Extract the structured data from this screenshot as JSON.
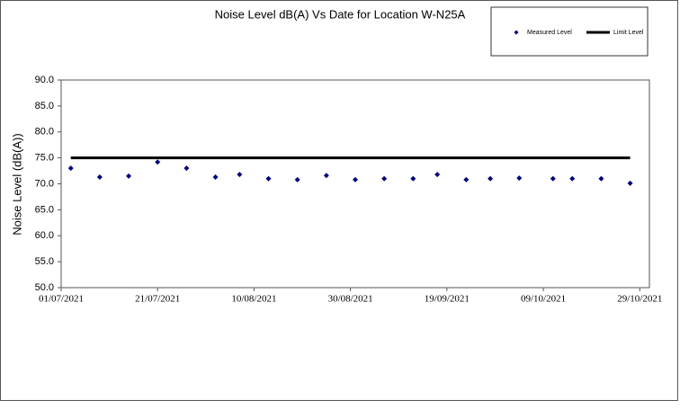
{
  "chart_data": {
    "type": "scatter",
    "title": "Noise Level dB(A) Vs Date for Location W-N25A",
    "y_label": "Noise Level (dB(A))",
    "series": [
      {
        "name": "Measured Level",
        "type": "scatter",
        "color": "#000080",
        "x": [
          "2021-07-03",
          "2021-07-09",
          "2021-07-15",
          "2021-07-21",
          "2021-07-27",
          "2021-08-02",
          "2021-08-07",
          "2021-08-13",
          "2021-08-19",
          "2021-08-25",
          "2021-08-31",
          "2021-09-06",
          "2021-09-12",
          "2021-09-17",
          "2021-09-23",
          "2021-09-28",
          "2021-10-04",
          "2021-10-11",
          "2021-10-15",
          "2021-10-21",
          "2021-10-27"
        ],
        "values": [
          73.0,
          71.3,
          71.5,
          74.2,
          73.0,
          71.3,
          71.8,
          71.0,
          70.8,
          71.6,
          70.8,
          71.0,
          71.0,
          71.8,
          70.8,
          71.0,
          71.1,
          71.0,
          71.0,
          71.0,
          70.1
        ]
      },
      {
        "name": "Limit Level",
        "type": "line",
        "color": "#000000",
        "x": [
          "2021-07-03",
          "2021-10-27"
        ],
        "values": [
          75,
          75
        ]
      }
    ],
    "xlim": [
      "2021-07-01",
      "2021-10-31"
    ],
    "xticks": [
      {
        "value": "2021-07-01",
        "label": "01/07/2021"
      },
      {
        "value": "2021-07-21",
        "label": "21/07/2021"
      },
      {
        "value": "2021-08-10",
        "label": "10/08/2021"
      },
      {
        "value": "2021-08-30",
        "label": "30/08/2021"
      },
      {
        "value": "2021-09-19",
        "label": "19/09/2021"
      },
      {
        "value": "2021-10-09",
        "label": "09/10/2021"
      },
      {
        "value": "2021-10-29",
        "label": "29/10/2021"
      }
    ],
    "ylim": [
      50,
      90
    ],
    "yticks": [
      {
        "value": 50,
        "label": "50.0"
      },
      {
        "value": 55,
        "label": "55.0"
      },
      {
        "value": 60,
        "label": "60.0"
      },
      {
        "value": 65,
        "label": "65.0"
      },
      {
        "value": 70,
        "label": "70.0"
      },
      {
        "value": 75,
        "label": "75.0"
      },
      {
        "value": 80,
        "label": "80.0"
      },
      {
        "value": 85,
        "label": "85.0"
      },
      {
        "value": 90,
        "label": "90.0"
      }
    ],
    "grid": false,
    "legend_position": "top-right"
  }
}
